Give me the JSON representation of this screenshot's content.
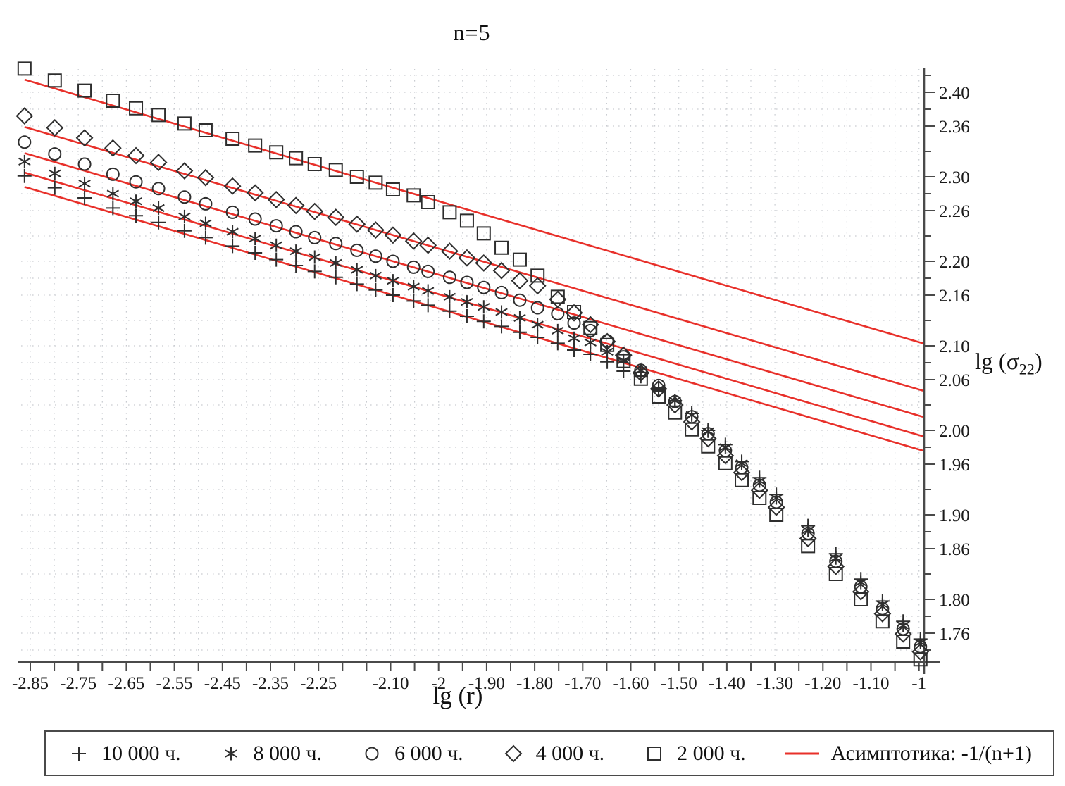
{
  "title": "n=5",
  "ylabel": {
    "prefix": "lg (σ",
    "sub": "22",
    "suffix": ")"
  },
  "legend": {
    "items": [
      {
        "marker": "plus",
        "label": "10 000 ч."
      },
      {
        "marker": "star6",
        "label": "8 000 ч."
      },
      {
        "marker": "circle",
        "label": "6 000 ч."
      },
      {
        "marker": "diamond",
        "label": "4 000 ч."
      },
      {
        "marker": "square",
        "label": "2 000 ч."
      },
      {
        "marker": "red-line",
        "label": "Асимптотика: -1/(n+1)"
      }
    ]
  },
  "chart_data": {
    "type": "scatter",
    "title": "n=5",
    "xlabel": "lg (r)",
    "ylabel": "lg (σ22)",
    "grid": true,
    "legend_position": "bottom",
    "colors": {
      "marker": "#2e2e2e",
      "asymptote": "#e8302a",
      "grid": "#c9ccd1",
      "axis": "#4a4a4a",
      "tick_text": "#1a1a1a"
    },
    "x_axis": {
      "label": "lg (r)",
      "min": -2.85,
      "max": -1.0,
      "tick_values": [
        -2.85,
        -2.8,
        -2.75,
        -2.7,
        -2.65,
        -2.6,
        -2.55,
        -2.5,
        -2.45,
        -2.4,
        -2.35,
        -2.3,
        -2.25,
        -2.2,
        -2.15,
        -2.1,
        -2.05,
        -2.0,
        -1.95,
        -1.9,
        -1.85,
        -1.8,
        -1.75,
        -1.7,
        -1.65,
        -1.6,
        -1.55,
        -1.5,
        -1.45,
        -1.4,
        -1.35,
        -1.3,
        -1.25,
        -1.2,
        -1.15,
        -1.1,
        -1.05,
        -1.0
      ],
      "tick_labels": [
        {
          "value": -2.85,
          "text": "-2.85"
        },
        {
          "value": -2.75,
          "text": "-2.75"
        },
        {
          "value": -2.65,
          "text": "-2.65"
        },
        {
          "value": -2.55,
          "text": "-2.55"
        },
        {
          "value": -2.45,
          "text": "-2.45"
        },
        {
          "value": -2.35,
          "text": "-2.35"
        },
        {
          "value": -2.25,
          "text": "-2.25"
        },
        {
          "value": -2.1,
          "text": "-2.10"
        },
        {
          "value": -2.0,
          "text": "-2"
        },
        {
          "value": -1.9,
          "text": "-1.90"
        },
        {
          "value": -1.8,
          "text": "-1.80"
        },
        {
          "value": -1.7,
          "text": "-1.70"
        },
        {
          "value": -1.6,
          "text": "-1.60"
        },
        {
          "value": -1.5,
          "text": "-1.50"
        },
        {
          "value": -1.4,
          "text": "-1.40"
        },
        {
          "value": -1.3,
          "text": "-1.30"
        },
        {
          "value": -1.2,
          "text": "-1.20"
        },
        {
          "value": -1.1,
          "text": "-1.10"
        },
        {
          "value": -1.0,
          "text": "-1"
        }
      ]
    },
    "y_axis": {
      "label": "lg (σ22)",
      "min": 1.726,
      "max": 2.428,
      "major_ticks": [
        {
          "value": 2.4,
          "text": "2.40"
        },
        {
          "value": 2.36,
          "text": "2.36"
        },
        {
          "value": 2.3,
          "text": "2.30"
        },
        {
          "value": 2.26,
          "text": "2.26"
        },
        {
          "value": 2.2,
          "text": "2.20"
        },
        {
          "value": 2.16,
          "text": "2.16"
        },
        {
          "value": 2.1,
          "text": "2.10"
        },
        {
          "value": 2.06,
          "text": "2.06"
        },
        {
          "value": 2.0,
          "text": "2.00"
        },
        {
          "value": 1.96,
          "text": "1.96"
        },
        {
          "value": 1.9,
          "text": "1.90"
        },
        {
          "value": 1.86,
          "text": "1.86"
        },
        {
          "value": 1.8,
          "text": "1.80"
        },
        {
          "value": 1.76,
          "text": "1.76"
        }
      ],
      "minor_ticks": [
        2.42,
        2.38,
        2.33,
        2.28,
        2.23,
        2.18,
        2.13,
        2.08,
        2.03,
        1.98,
        1.93,
        1.88,
        1.83,
        1.78,
        1.74
      ]
    },
    "x": [
      -2.862,
      -2.799,
      -2.737,
      -2.678,
      -2.63,
      -2.583,
      -2.529,
      -2.485,
      -2.429,
      -2.382,
      -2.338,
      -2.297,
      -2.258,
      -2.214,
      -2.17,
      -2.131,
      -2.095,
      -2.052,
      -2.022,
      -1.977,
      -1.941,
      -1.906,
      -1.869,
      -1.831,
      -1.794,
      -1.752,
      -1.718,
      -1.684,
      -1.649,
      -1.615,
      -1.579,
      -1.542,
      -1.508,
      -1.473,
      -1.439,
      -1.403,
      -1.369,
      -1.332,
      -1.297,
      -1.231,
      -1.173,
      -1.121,
      -1.076,
      -1.033,
      -0.997
    ],
    "series": [
      {
        "name": "10 000 ч.",
        "marker": "plus",
        "y": [
          2.301,
          2.287,
          2.275,
          2.263,
          2.254,
          2.246,
          2.236,
          2.228,
          2.218,
          2.21,
          2.202,
          2.195,
          2.188,
          2.181,
          2.173,
          2.166,
          2.16,
          2.153,
          2.148,
          2.141,
          2.135,
          2.129,
          2.123,
          2.116,
          2.11,
          2.103,
          2.095,
          2.09,
          2.081,
          2.07,
          2.064,
          2.05,
          2.035,
          2.02,
          2.0,
          1.983,
          1.963,
          1.944,
          1.924,
          1.887,
          1.854,
          1.824,
          1.798,
          1.774,
          1.753
        ]
      },
      {
        "name": "8 000 ч.",
        "marker": "star6",
        "y": [
          2.318,
          2.304,
          2.292,
          2.28,
          2.271,
          2.263,
          2.253,
          2.245,
          2.235,
          2.227,
          2.219,
          2.212,
          2.205,
          2.198,
          2.19,
          2.183,
          2.177,
          2.17,
          2.165,
          2.158,
          2.152,
          2.146,
          2.14,
          2.133,
          2.125,
          2.118,
          2.109,
          2.104,
          2.093,
          2.083,
          2.071,
          2.049,
          2.035,
          2.018,
          1.999,
          1.98,
          1.961,
          1.94,
          1.92,
          1.882,
          1.849,
          1.82,
          1.794,
          1.769,
          1.749
        ]
      },
      {
        "name": "6 000 ч.",
        "marker": "circle",
        "y": [
          2.341,
          2.327,
          2.315,
          2.303,
          2.294,
          2.286,
          2.276,
          2.268,
          2.258,
          2.25,
          2.242,
          2.235,
          2.228,
          2.221,
          2.213,
          2.206,
          2.2,
          2.193,
          2.188,
          2.181,
          2.175,
          2.169,
          2.163,
          2.154,
          2.145,
          2.138,
          2.127,
          2.118,
          2.106,
          2.087,
          2.071,
          2.053,
          2.034,
          2.016,
          1.996,
          1.976,
          1.956,
          1.935,
          1.915,
          1.878,
          1.845,
          1.815,
          1.789,
          1.765,
          1.744
        ]
      },
      {
        "name": "4 000 ч.",
        "marker": "diamond",
        "y": [
          2.372,
          2.358,
          2.346,
          2.334,
          2.325,
          2.317,
          2.307,
          2.299,
          2.289,
          2.281,
          2.273,
          2.266,
          2.259,
          2.252,
          2.244,
          2.237,
          2.231,
          2.224,
          2.219,
          2.212,
          2.204,
          2.198,
          2.189,
          2.177,
          2.171,
          2.155,
          2.139,
          2.125,
          2.105,
          2.089,
          2.068,
          2.049,
          2.03,
          2.01,
          1.99,
          1.97,
          1.95,
          1.929,
          1.909,
          1.872,
          1.839,
          1.809,
          1.783,
          1.759,
          1.738
        ]
      },
      {
        "name": "2 000 ч.",
        "marker": "square",
        "y": [
          2.428,
          2.414,
          2.402,
          2.39,
          2.381,
          2.373,
          2.363,
          2.355,
          2.345,
          2.337,
          2.329,
          2.322,
          2.315,
          2.308,
          2.3,
          2.293,
          2.285,
          2.278,
          2.27,
          2.258,
          2.248,
          2.233,
          2.216,
          2.202,
          2.183,
          2.158,
          2.14,
          2.121,
          2.101,
          2.082,
          2.061,
          2.04,
          2.021,
          2.001,
          1.981,
          1.961,
          1.941,
          1.92,
          1.9,
          1.863,
          1.83,
          1.8,
          1.774,
          1.75,
          1.729
        ]
      }
    ],
    "asymptotes": {
      "label": "Асимптотика: -1/(n+1)",
      "slope": -0.1667,
      "lines": [
        {
          "for": "2 000 ч.",
          "x1": -2.862,
          "y1": 2.415,
          "x2": -0.992,
          "y2": 2.103
        },
        {
          "for": "4 000 ч.",
          "x1": -2.862,
          "y1": 2.359,
          "x2": -0.992,
          "y2": 2.047
        },
        {
          "for": "6 000 ч.",
          "x1": -2.862,
          "y1": 2.328,
          "x2": -0.992,
          "y2": 2.016
        },
        {
          "for": "8 000 ч.",
          "x1": -2.862,
          "y1": 2.305,
          "x2": -0.992,
          "y2": 1.993
        },
        {
          "for": "10 000 ч.",
          "x1": -2.862,
          "y1": 2.288,
          "x2": -0.992,
          "y2": 1.976
        }
      ]
    }
  }
}
